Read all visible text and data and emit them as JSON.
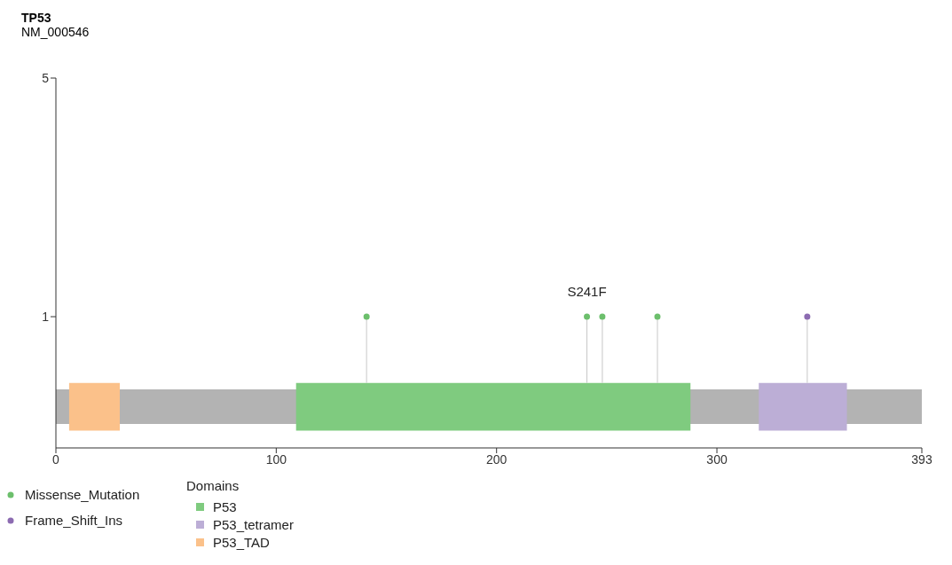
{
  "chart_data": {
    "type": "lollipop",
    "title": "TP53",
    "subtitle": "NM_000546",
    "legend_title": "Domains",
    "xlim": [
      0,
      393
    ],
    "xticks": [
      0,
      100,
      200,
      300,
      393
    ],
    "ylim": [
      -1.2,
      5
    ],
    "yticks": [
      1,
      5
    ],
    "legend": "bottom left",
    "marker": "circle",
    "series": [
      {
        "name": "Missense_Mutation",
        "color": "#6cbf6c",
        "x": [
          141,
          241,
          248,
          273
        ],
        "values": [
          1,
          1,
          1,
          1
        ]
      },
      {
        "name": "Frame_Shift_Ins",
        "color": "#8c6bb1",
        "x": [
          341
        ],
        "values": [
          1
        ]
      }
    ],
    "bands": [
      {
        "axis": "x",
        "from": 0,
        "to": 393,
        "color": "#b3b3b3"
      },
      {
        "axis": "x",
        "from": 109,
        "to": 288,
        "label": "P53",
        "color": "#7fcb7f"
      },
      {
        "axis": "x",
        "from": 319,
        "to": 359,
        "label": "P53_tetramer",
        "color": "#bcaed6"
      },
      {
        "axis": "x",
        "from": 6,
        "to": 29,
        "label": "P53_TAD",
        "color": "#fbc18a"
      }
    ],
    "annotations": [
      {
        "text": "S241F",
        "x": 241,
        "y": 1
      }
    ]
  }
}
